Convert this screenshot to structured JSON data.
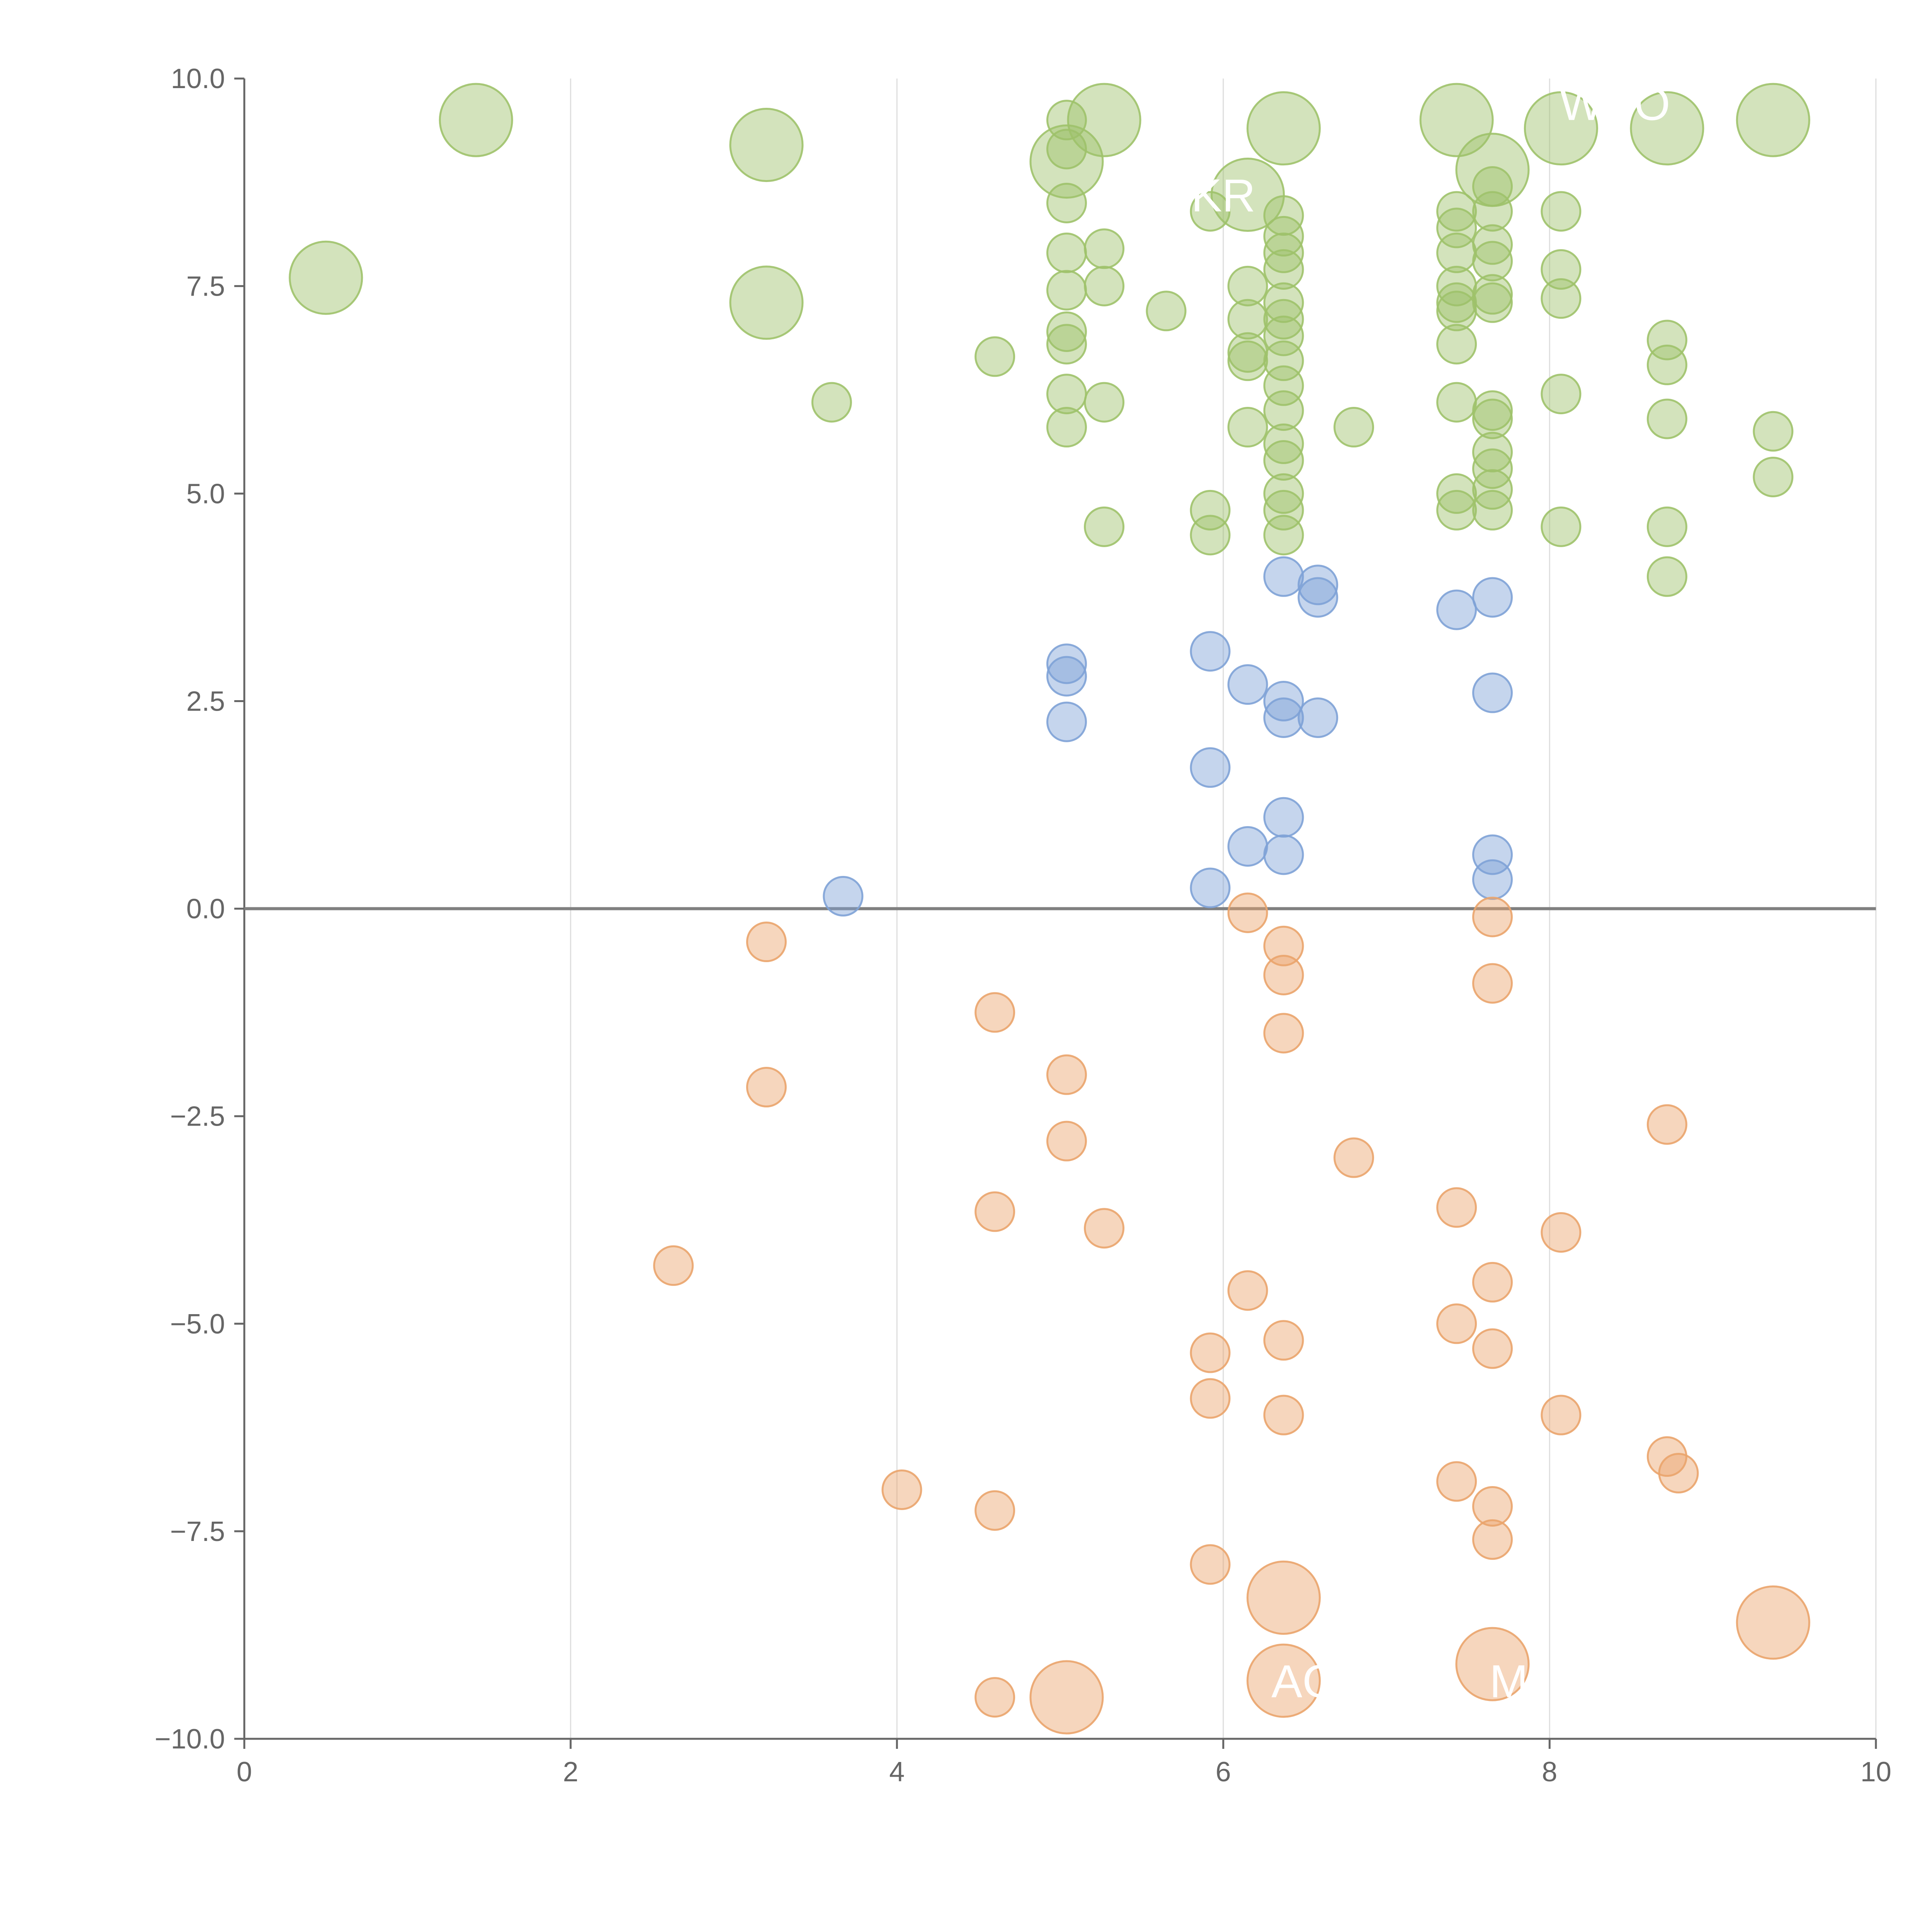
{
  "chart_data": {
    "type": "scatter",
    "title": "",
    "xlabel": "",
    "ylabel": "",
    "xlim": [
      0,
      10
    ],
    "ylim": [
      -10,
      10
    ],
    "grid": "vertical",
    "x_ticks": [
      "0",
      "2",
      "4",
      "6",
      "8",
      "10"
    ],
    "y_ticks": [
      "10.0",
      "7.5",
      "5.0",
      "2.5",
      "0.0",
      "−2.5",
      "−5.0",
      "−7.5",
      "−10.0"
    ],
    "colors": {
      "high": "#9ec26a",
      "mid": "#7ea2d6",
      "negative": "#eaa46c",
      "axis": "#666666",
      "zero_line": "#808080",
      "grid": "#dddddd",
      "label": "#ffffff"
    },
    "labels": [
      {
        "text": "KR",
        "x": 6.0,
        "y": 8.4
      },
      {
        "text": "WSO",
        "x": 8.4,
        "y": 9.5
      },
      {
        "text": "AG",
        "x": 6.5,
        "y": -9.5
      },
      {
        "text": "M",
        "x": 7.75,
        "y": -9.5
      }
    ],
    "series": [
      {
        "name": "high",
        "color_key": "high",
        "points": [
          [
            0.5,
            7.6,
            2
          ],
          [
            1.42,
            9.5,
            2
          ],
          [
            3.2,
            9.2,
            2
          ],
          [
            3.2,
            7.3,
            2
          ],
          [
            3.6,
            6.1,
            1
          ],
          [
            4.6,
            6.65,
            1
          ],
          [
            5.04,
            9.5,
            1
          ],
          [
            5.04,
            9.15,
            1
          ],
          [
            5.04,
            8.5,
            1
          ],
          [
            5.04,
            7.9,
            1
          ],
          [
            5.04,
            7.45,
            1
          ],
          [
            5.04,
            6.95,
            1
          ],
          [
            5.04,
            6.8,
            1
          ],
          [
            5.04,
            6.2,
            1
          ],
          [
            5.04,
            5.8,
            1
          ],
          [
            5.04,
            9.0,
            2
          ],
          [
            5.27,
            9.5,
            2
          ],
          [
            5.27,
            7.95,
            1
          ],
          [
            5.27,
            7.5,
            1
          ],
          [
            5.27,
            6.1,
            1
          ],
          [
            5.27,
            4.6,
            1
          ],
          [
            5.65,
            7.2,
            1
          ],
          [
            5.92,
            8.4,
            1
          ],
          [
            5.92,
            4.8,
            1
          ],
          [
            5.92,
            4.5,
            1
          ],
          [
            6.15,
            8.6,
            2
          ],
          [
            6.15,
            7.5,
            1
          ],
          [
            6.15,
            7.1,
            1
          ],
          [
            6.15,
            6.7,
            1
          ],
          [
            6.15,
            6.6,
            1
          ],
          [
            6.15,
            5.8,
            1
          ],
          [
            6.37,
            9.4,
            2
          ],
          [
            6.37,
            8.35,
            1
          ],
          [
            6.37,
            8.1,
            1
          ],
          [
            6.37,
            7.9,
            1
          ],
          [
            6.37,
            7.7,
            1
          ],
          [
            6.37,
            7.3,
            1
          ],
          [
            6.37,
            7.1,
            1
          ],
          [
            6.37,
            6.9,
            1
          ],
          [
            6.37,
            6.6,
            1
          ],
          [
            6.37,
            6.3,
            1
          ],
          [
            6.37,
            6.0,
            1
          ],
          [
            6.37,
            5.6,
            1
          ],
          [
            6.37,
            5.4,
            1
          ],
          [
            6.37,
            5.0,
            1
          ],
          [
            6.37,
            4.8,
            1
          ],
          [
            6.37,
            4.5,
            1
          ],
          [
            6.8,
            5.8,
            1
          ],
          [
            7.43,
            9.5,
            2
          ],
          [
            7.43,
            8.4,
            1
          ],
          [
            7.43,
            8.2,
            1
          ],
          [
            7.43,
            7.9,
            1
          ],
          [
            7.43,
            7.5,
            1
          ],
          [
            7.43,
            7.3,
            1
          ],
          [
            7.43,
            7.2,
            1
          ],
          [
            7.43,
            6.8,
            1
          ],
          [
            7.43,
            6.1,
            1
          ],
          [
            7.43,
            5.0,
            1
          ],
          [
            7.43,
            4.8,
            1
          ],
          [
            7.65,
            8.9,
            2
          ],
          [
            7.65,
            8.7,
            1
          ],
          [
            7.65,
            8.4,
            1
          ],
          [
            7.65,
            8.0,
            1
          ],
          [
            7.65,
            7.8,
            1
          ],
          [
            7.65,
            7.4,
            1
          ],
          [
            7.65,
            7.3,
            1
          ],
          [
            7.65,
            6.0,
            1
          ],
          [
            7.65,
            5.9,
            1
          ],
          [
            7.65,
            5.5,
            1
          ],
          [
            7.65,
            5.3,
            1
          ],
          [
            7.65,
            5.05,
            1
          ],
          [
            7.65,
            4.8,
            1
          ],
          [
            8.07,
            9.4,
            2
          ],
          [
            8.07,
            8.4,
            1
          ],
          [
            8.07,
            7.7,
            1
          ],
          [
            8.07,
            7.35,
            1
          ],
          [
            8.07,
            6.2,
            1
          ],
          [
            8.07,
            4.6,
            1
          ],
          [
            8.72,
            9.4,
            2
          ],
          [
            8.72,
            6.85,
            1
          ],
          [
            8.72,
            6.55,
            1
          ],
          [
            8.72,
            5.9,
            1
          ],
          [
            8.72,
            4.6,
            1
          ],
          [
            8.72,
            4.0,
            1
          ],
          [
            9.37,
            9.5,
            2
          ],
          [
            9.37,
            5.75,
            1
          ],
          [
            9.37,
            5.2,
            1
          ]
        ]
      },
      {
        "name": "mid",
        "color_key": "mid",
        "points": [
          [
            3.67,
            0.15,
            1
          ],
          [
            5.04,
            2.95,
            1
          ],
          [
            5.04,
            2.8,
            1
          ],
          [
            5.04,
            2.25,
            1
          ],
          [
            5.92,
            3.1,
            1
          ],
          [
            5.92,
            1.7,
            1
          ],
          [
            5.92,
            0.25,
            1
          ],
          [
            6.15,
            2.7,
            1
          ],
          [
            6.15,
            0.75,
            1
          ],
          [
            6.37,
            4.0,
            1
          ],
          [
            6.37,
            2.5,
            1
          ],
          [
            6.37,
            2.3,
            1
          ],
          [
            6.37,
            1.1,
            1
          ],
          [
            6.37,
            0.65,
            1
          ],
          [
            6.58,
            3.9,
            1
          ],
          [
            6.58,
            3.75,
            1
          ],
          [
            6.58,
            2.3,
            1
          ],
          [
            7.43,
            3.6,
            1
          ],
          [
            7.65,
            3.75,
            1
          ],
          [
            7.65,
            2.6,
            1
          ],
          [
            7.65,
            0.65,
            1
          ],
          [
            7.65,
            0.35,
            1
          ]
        ]
      },
      {
        "name": "negative",
        "color_key": "negative",
        "points": [
          [
            2.63,
            -4.3,
            1
          ],
          [
            3.2,
            -0.4,
            1
          ],
          [
            3.2,
            -2.15,
            1
          ],
          [
            4.03,
            -7.0,
            1
          ],
          [
            4.6,
            -1.25,
            1
          ],
          [
            4.6,
            -3.65,
            1
          ],
          [
            4.6,
            -7.25,
            1
          ],
          [
            4.6,
            -9.5,
            1
          ],
          [
            5.04,
            -2.0,
            1
          ],
          [
            5.04,
            -2.8,
            1
          ],
          [
            5.04,
            -9.5,
            2
          ],
          [
            5.27,
            -3.85,
            1
          ],
          [
            5.92,
            -5.35,
            1
          ],
          [
            5.92,
            -5.9,
            1
          ],
          [
            5.92,
            -7.9,
            1
          ],
          [
            6.15,
            -0.05,
            1
          ],
          [
            6.15,
            -4.6,
            1
          ],
          [
            6.37,
            -0.45,
            1
          ],
          [
            6.37,
            -0.8,
            1
          ],
          [
            6.37,
            -1.5,
            1
          ],
          [
            6.37,
            -5.2,
            1
          ],
          [
            6.37,
            -6.1,
            1
          ],
          [
            6.37,
            -8.3,
            2
          ],
          [
            6.37,
            -9.3,
            2
          ],
          [
            6.8,
            -3.0,
            1
          ],
          [
            7.43,
            -3.6,
            1
          ],
          [
            7.43,
            -5.0,
            1
          ],
          [
            7.43,
            -6.9,
            1
          ],
          [
            7.65,
            -0.1,
            1
          ],
          [
            7.65,
            -0.9,
            1
          ],
          [
            7.65,
            -4.5,
            1
          ],
          [
            7.65,
            -5.3,
            1
          ],
          [
            7.65,
            -7.2,
            1
          ],
          [
            7.65,
            -7.6,
            1
          ],
          [
            7.65,
            -9.1,
            2
          ],
          [
            8.07,
            -3.9,
            1
          ],
          [
            8.07,
            -6.1,
            1
          ],
          [
            8.72,
            -2.6,
            1
          ],
          [
            8.72,
            -6.6,
            1
          ],
          [
            8.79,
            -6.8,
            1
          ],
          [
            9.37,
            -8.6,
            2
          ]
        ]
      }
    ]
  }
}
